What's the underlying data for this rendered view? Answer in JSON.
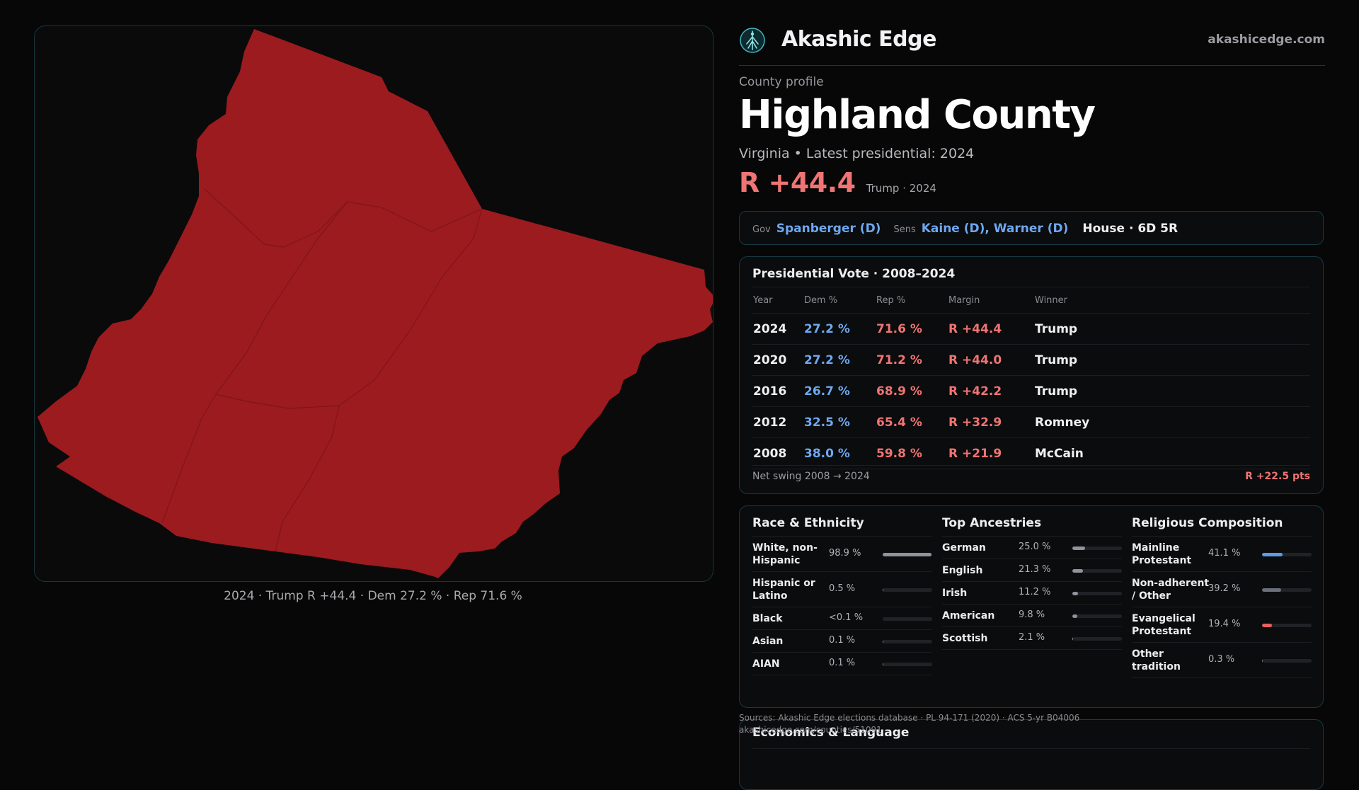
{
  "map": {
    "fill_color": "#9c1b1f",
    "caption": "2024 · Trump R +44.4 · Dem 27.2 % · Rep 71.6 %"
  },
  "brand": {
    "name": "Akashic Edge",
    "url": "akashicedge.com",
    "logo_icon": "tree-compass-icon"
  },
  "header": {
    "eyebrow": "County profile",
    "title": "Highland County",
    "subtitle": "Virginia • Latest presidential: 2024",
    "margin": "R +44.4",
    "margin_note": "Trump · 2024"
  },
  "officials": {
    "gov_label": "Gov",
    "gov": "Spanberger (D)",
    "sens_label": "Sens",
    "sens": "Kaine (D), Warner (D)",
    "house": "House · 6D 5R"
  },
  "vote": {
    "title": "Presidential Vote · 2008–2024",
    "headers": [
      "Year",
      "Dem %",
      "Rep %",
      "Margin",
      "Winner"
    ],
    "rows": [
      {
        "year": "2024",
        "dem": "27.2 %",
        "rep": "71.6 %",
        "margin": "R +44.4",
        "winner": "Trump"
      },
      {
        "year": "2020",
        "dem": "27.2 %",
        "rep": "71.2 %",
        "margin": "R +44.0",
        "winner": "Trump"
      },
      {
        "year": "2016",
        "dem": "26.7 %",
        "rep": "68.9 %",
        "margin": "R +42.2",
        "winner": "Trump"
      },
      {
        "year": "2012",
        "dem": "32.5 %",
        "rep": "65.4 %",
        "margin": "R +32.9",
        "winner": "Romney"
      },
      {
        "year": "2008",
        "dem": "38.0 %",
        "rep": "59.8 %",
        "margin": "R +21.9",
        "winner": "McCain"
      }
    ],
    "swing_label": "Net swing 2008 → 2024",
    "swing_value": "R +22.5 pts"
  },
  "race": {
    "title": "Race & Ethnicity",
    "items": [
      {
        "label": "White, non-Hispanic",
        "value": "98.9 %",
        "fraction": 0.989,
        "color": "#8e939c"
      },
      {
        "label": "Hispanic or Latino",
        "value": "0.5 %",
        "fraction": 0.005,
        "color": "#8e939c"
      },
      {
        "label": "Black",
        "value": "<0.1 %",
        "fraction": 0.0,
        "color": "#8e939c"
      },
      {
        "label": "Asian",
        "value": "0.1 %",
        "fraction": 0.001,
        "color": "#8e939c"
      },
      {
        "label": "AIAN",
        "value": "0.1 %",
        "fraction": 0.001,
        "color": "#8e939c"
      }
    ]
  },
  "ancestry": {
    "title": "Top Ancestries",
    "items": [
      {
        "label": "German",
        "value": "25.0 %",
        "fraction": 0.25,
        "color": "#8e939c"
      },
      {
        "label": "English",
        "value": "21.3 %",
        "fraction": 0.213,
        "color": "#8e939c"
      },
      {
        "label": "Irish",
        "value": "11.2 %",
        "fraction": 0.112,
        "color": "#8e939c"
      },
      {
        "label": "American",
        "value": "9.8 %",
        "fraction": 0.098,
        "color": "#8e939c"
      },
      {
        "label": "Scottish",
        "value": "2.1 %",
        "fraction": 0.021,
        "color": "#8e939c"
      }
    ]
  },
  "religion": {
    "title": "Religious Composition",
    "items": [
      {
        "label": "Mainline Protestant",
        "value": "41.1 %",
        "fraction": 0.411,
        "color": "#5f9ae6"
      },
      {
        "label": "Non-adherent / Other",
        "value": "39.2 %",
        "fraction": 0.392,
        "color": "#6c7078"
      },
      {
        "label": "Evangelical Protestant",
        "value": "19.4 %",
        "fraction": 0.194,
        "color": "#e86060"
      },
      {
        "label": "Other tradition",
        "value": "0.3 %",
        "fraction": 0.003,
        "color": "#6c7078"
      }
    ]
  },
  "sources": {
    "line1": "Sources: Akashic Edge elections database · PL 94-171 (2020) · ACS 5-yr B04006",
    "line2": "akashicedge.com/counties/51091"
  },
  "economics": {
    "title": "Economics & Language"
  }
}
